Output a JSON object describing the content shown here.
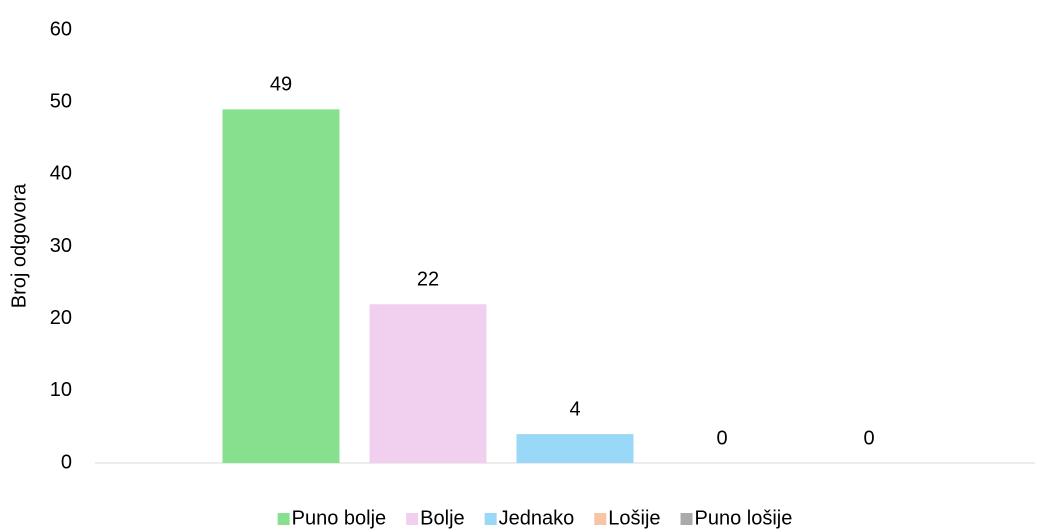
{
  "chart_data": {
    "type": "bar",
    "categories": [
      null
    ],
    "series": [
      {
        "name": "Puno bolje",
        "color": "#86e08d",
        "values": [
          49
        ]
      },
      {
        "name": "Bolje",
        "color": "#f1cfee",
        "values": [
          22
        ]
      },
      {
        "name": "Jednako",
        "color": "#99d9f7",
        "values": [
          4
        ]
      },
      {
        "name": "Lošije",
        "color": "#f8c4a6",
        "values": [
          0
        ]
      },
      {
        "name": "Puno lošije",
        "color": "#aaaaaa",
        "values": [
          0
        ]
      }
    ],
    "ylabel": "Broj odgovora",
    "ylim": [
      0,
      60
    ],
    "yticks": [
      0,
      10,
      20,
      30,
      40,
      50,
      60
    ],
    "grid": false,
    "legend": "bottom"
  }
}
